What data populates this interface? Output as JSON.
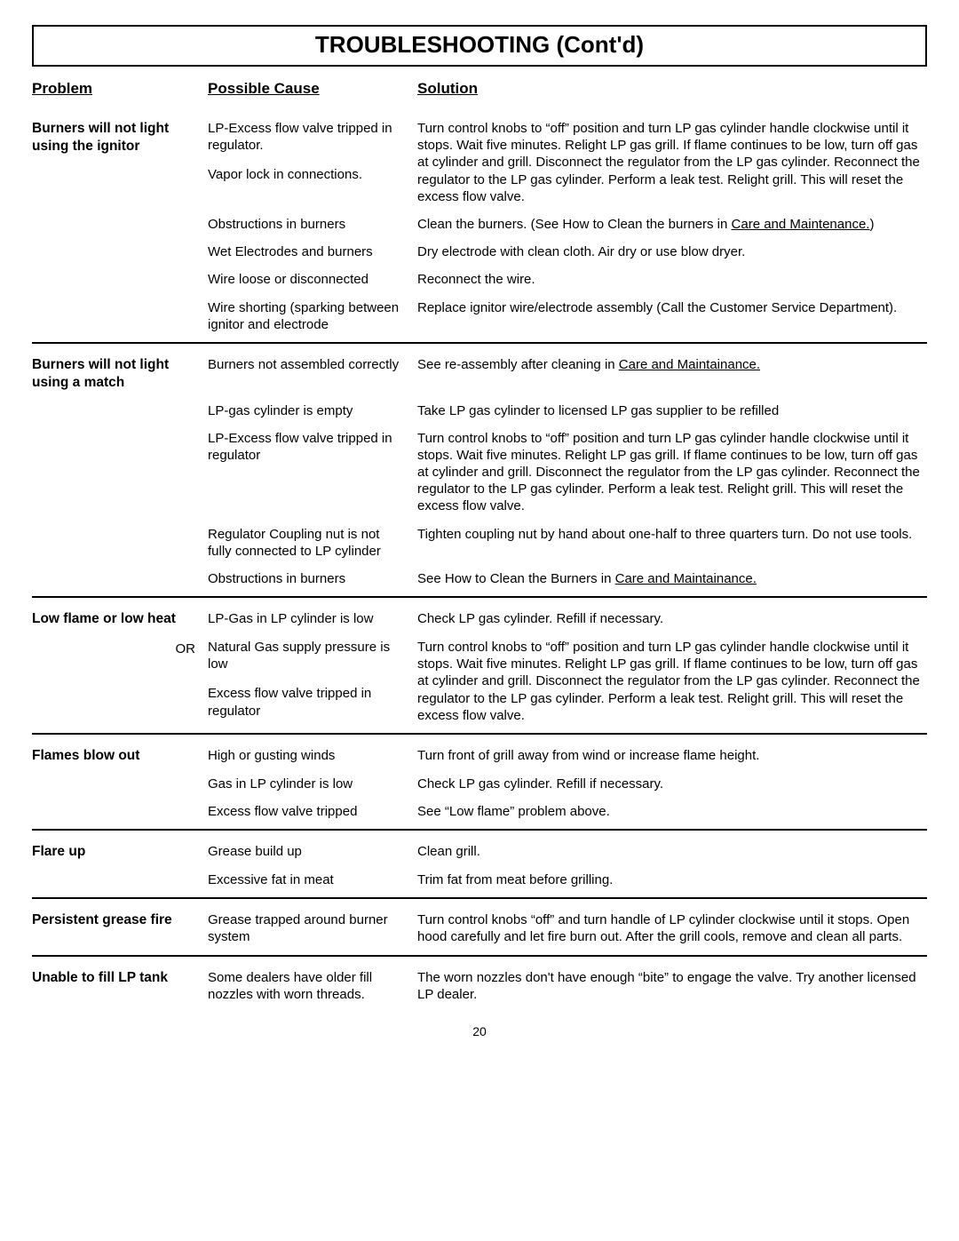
{
  "page_title": "TROUBLESHOOTING (Cont'd)",
  "headers": {
    "problem": "Problem",
    "cause": "Possible Cause",
    "solution": "Solution"
  },
  "page_number": "20",
  "sections": [
    {
      "problem": "Burners will not light using the ignitor",
      "rows": [
        {
          "cause": "LP-Excess flow valve tripped in regulator.",
          "cause2": "Vapor lock in connections.",
          "solution": "Turn control knobs to “off” position and turn LP gas cylinder handle clockwise until it stops.  Wait five minutes.  Relight LP gas grill. If flame continues to be low, turn off gas at cylinder and grill.  Disconnect the regulator from the LP gas cylinder.  Reconnect the regulator to the LP gas cylinder.  Perform a leak test. Relight grill. This will reset the excess flow valve."
        },
        {
          "cause": "Obstructions in burners",
          "solution_pre": "Clean the burners. (See How to Clean the burners in ",
          "solution_u": "Care and Maintenance.",
          "solution_post": ")"
        },
        {
          "cause": "Wet Electrodes and burners",
          "solution": "Dry electrode with clean cloth. Air dry or use blow dryer."
        },
        {
          "cause": "Wire loose or disconnected",
          "solution": "Reconnect the wire."
        },
        {
          "cause": "Wire shorting (sparking between ignitor and electrode",
          "solution": "Replace ignitor wire/electrode assembly (Call the Customer Service Department)."
        }
      ]
    },
    {
      "problem": "Burners will not light using a match",
      "rows": [
        {
          "cause": "Burners not assembled correctly",
          "solution_pre": "See re-assembly after cleaning in ",
          "solution_u": "Care and Maintainance.",
          "solution_post": ""
        },
        {
          "cause": "LP-gas cylinder is empty",
          "solution": "Take LP gas cylinder to licensed LP gas supplier to be refilled"
        },
        {
          "cause": "LP-Excess flow valve tripped in regulator",
          "solution": "Turn control knobs to “off” position and turn LP gas cylinder handle clockwise until it stops.  Wait five minutes.  Relight LP gas grill. If flame continues to be low, turn off gas at cylinder and grill.  Disconnect the regulator from the LP gas cylinder.  Reconnect the regulator to the LP gas cylinder.  Perform a leak test. Relight grill. This will reset the excess flow valve."
        },
        {
          "cause": "Regulator Coupling nut is not fully connected to LP cylinder",
          "solution": "Tighten coupling nut by hand about one-half to three quarters turn. Do not use tools."
        },
        {
          "cause": "Obstructions in burners",
          "solution_pre": "See How to Clean the Burners in ",
          "solution_u": "Care and Maintainance.",
          "solution_post": ""
        }
      ]
    },
    {
      "problem": "Low flame or low heat",
      "or_label": "OR",
      "rows": [
        {
          "cause": "LP-Gas in LP cylinder is low",
          "solution": "Check LP gas cylinder. Refill if necessary."
        },
        {
          "cause": "Natural Gas supply pressure is low",
          "cause2": "Excess flow valve tripped in regulator",
          "solution": "Turn control knobs to “off” position and turn LP gas cylinder handle clockwise until it stops.  Wait five minutes.  Relight LP gas grill. If flame continues to be low, turn off gas at cylinder and grill.  Disconnect the regulator from the LP gas cylinder.  Reconnect the regulator to the LP gas cylinder.  Perform a leak test. Relight grill. This will reset the excess flow valve."
        }
      ]
    },
    {
      "problem": "Flames blow out",
      "rows": [
        {
          "cause": "High or gusting winds",
          "solution": "Turn front of grill away from wind or increase flame height."
        },
        {
          "cause": "Gas in LP cylinder is low",
          "solution": "Check LP gas cylinder. Refill if necessary."
        },
        {
          "cause": "Excess flow valve tripped",
          "solution": "See “Low flame” problem above."
        }
      ]
    },
    {
      "problem": "Flare up",
      "rows": [
        {
          "cause": "Grease build up",
          "solution": "Clean grill."
        },
        {
          "cause": "Excessive fat in meat",
          "solution": "Trim fat from meat before grilling."
        }
      ]
    },
    {
      "problem": "Persistent grease fire",
      "rows": [
        {
          "cause": "Grease trapped around burner system",
          "solution": "Turn control knobs “off” and turn handle of LP cylinder clockwise until it stops.  Open hood carefully and let fire burn out.  After the grill cools, remove and clean all parts."
        }
      ]
    },
    {
      "problem": "Unable to fill LP tank",
      "last": true,
      "rows": [
        {
          "cause": "Some dealers have older fill nozzles with worn threads.",
          "solution": "The worn nozzles don't have enough “bite” to engage the valve. Try another licensed LP dealer."
        }
      ]
    }
  ]
}
